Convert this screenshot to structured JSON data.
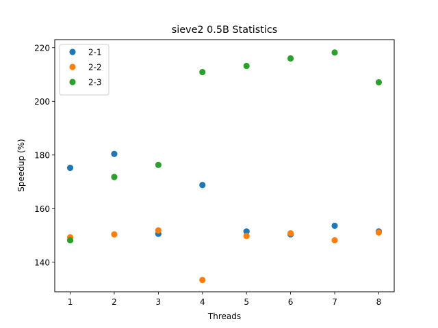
{
  "chart_data": {
    "type": "scatter",
    "title": "sieve2 0.5B Statistics",
    "xlabel": "Threads",
    "ylabel": "Speedup (%)",
    "x": [
      1,
      2,
      3,
      4,
      5,
      6,
      7,
      8
    ],
    "xlim": [
      0.65,
      8.35
    ],
    "ylim": [
      129,
      223
    ],
    "xticks": [
      1,
      2,
      3,
      4,
      5,
      6,
      7,
      8
    ],
    "yticks": [
      140,
      160,
      180,
      200,
      220
    ],
    "grid": false,
    "legend_position": "top-left",
    "series": [
      {
        "name": "2-1",
        "color": "#1f77b4",
        "values": [
          175.2,
          180.4,
          150.6,
          168.8,
          151.5,
          150.4,
          153.6,
          151.5
        ]
      },
      {
        "name": "2-2",
        "color": "#ff7f0e",
        "values": [
          149.3,
          150.4,
          151.9,
          133.4,
          149.8,
          150.8,
          148.2,
          151.1
        ]
      },
      {
        "name": "2-3",
        "color": "#2ca02c",
        "values": [
          148.2,
          171.8,
          176.3,
          210.9,
          213.2,
          216.0,
          218.2,
          207.1
        ]
      }
    ]
  }
}
